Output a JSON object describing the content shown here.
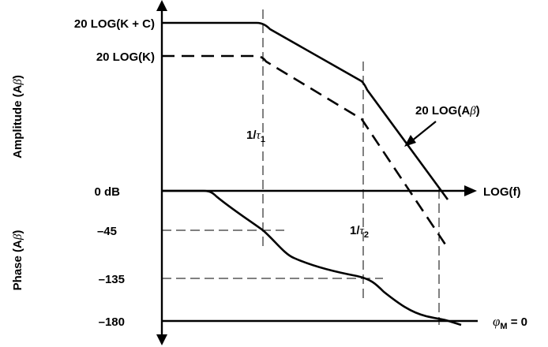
{
  "labels": {
    "level_k_plus_c": "20 LOG(K + C)",
    "level_k": "20 LOG(K)",
    "amplitude_axis": "Amplitude (A",
    "amplitude_axis_beta": "β",
    "amplitude_axis_close": ")",
    "phase_axis": "Phase (A",
    "phase_axis_beta": "β",
    "phase_axis_close": ")",
    "zero_db": "0 dB",
    "minus_45": "–45",
    "minus_135": "–135",
    "minus_180": "–180",
    "log_f": "LOG(f)",
    "tau1_prefix": "1/",
    "tau1_symbol": "τ",
    "tau1_sub": "1",
    "tau2_prefix": "1/",
    "tau2_symbol": "τ",
    "tau2_sub": "2",
    "curve_label_prefix": "20 LOG(A",
    "curve_label_beta": "β",
    "curve_label_close": ")",
    "phi_symbol": "φ",
    "phi_sub": "M",
    "phi_eq": " = 0"
  }
}
